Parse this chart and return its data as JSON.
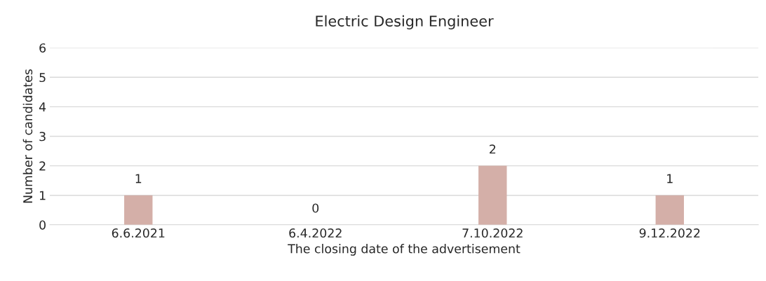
{
  "chart_data": {
    "type": "bar",
    "title": "Electric Design Engineer",
    "xlabel": "The closing date of the advertisement",
    "ylabel": "Number of candidates",
    "categories": [
      "6.6.2021",
      "6.4.2022",
      "7.10.2022",
      "9.12.2022"
    ],
    "values": [
      1,
      0,
      2,
      1
    ],
    "color": "#d4afa8",
    "ylim": [
      0,
      6
    ],
    "yticks": [
      0,
      1,
      2,
      3,
      4,
      5,
      6
    ],
    "grid": "y",
    "data_labels": true
  }
}
